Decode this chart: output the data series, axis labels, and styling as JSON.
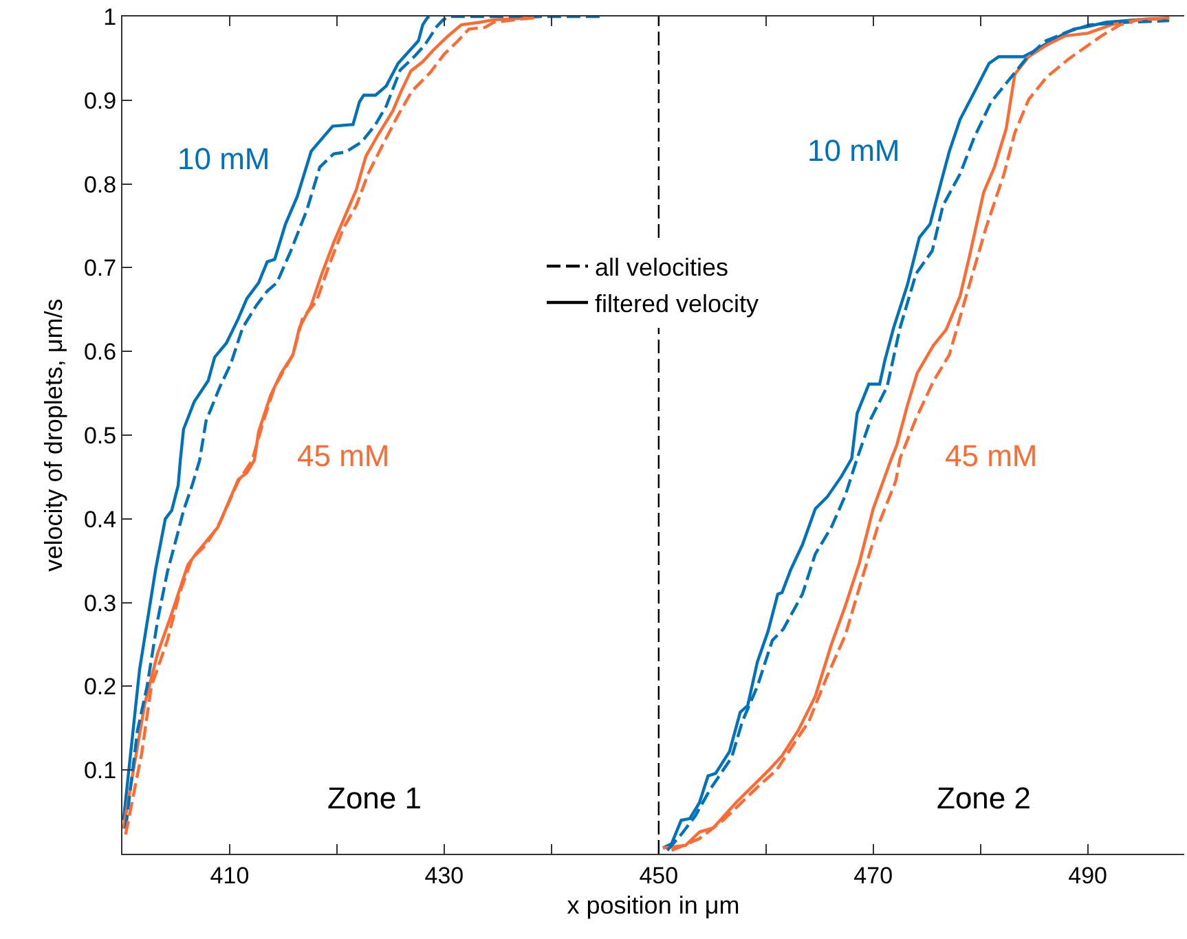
{
  "chart_data": {
    "type": "line",
    "xlabel": "x position in μm",
    "ylabel": "velocity of droplets, μm/s",
    "xlim": [
      400,
      499
    ],
    "xticks": [
      {
        "value": 400,
        "label": null
      },
      410,
      {
        "value": 420,
        "label": null
      },
      430,
      {
        "value": 440,
        "label": null
      },
      450,
      {
        "value": 460,
        "label": null
      },
      470,
      {
        "value": 480,
        "label": null
      },
      490
    ],
    "ylim": [
      0,
      1
    ],
    "yticks": [
      0.1,
      0.2,
      0.3,
      0.4,
      0.5,
      0.6,
      0.7,
      0.8,
      0.9,
      1
    ],
    "grid": false,
    "legend": "center",
    "marker": "none",
    "ref_lines": [
      {
        "axis": "x",
        "value": 450,
        "color": "#000000",
        "line_style": "dashed"
      }
    ],
    "annotations": [
      "10 mM",
      "45 mM",
      "10 mM",
      "45 mM",
      "Zone 1",
      "Zone 2"
    ],
    "series": [
      {
        "name": "all velocities",
        "color": "#000000",
        "line_style": "dashed",
        "values": [
          null
        ]
      },
      {
        "name": "filtered velocity",
        "color": "#000000",
        "line_style": "solid",
        "values": [
          null
        ]
      },
      {
        "color": "#0072bd",
        "line_style": "solid",
        "x": [
          400.1,
          401.6,
          403.1,
          404.0,
          404.6,
          405.2,
          405.4,
          405.7,
          406.7,
          408.0,
          408.6,
          409.7,
          410.8,
          411.6,
          412.7,
          413.5,
          414.2,
          415.2,
          416.3,
          417.6,
          419.6,
          421.5,
          422.1,
          422.5,
          423.6,
          424.6,
          425.7,
          427.6,
          428.0,
          428.4,
          428.6
        ],
        "values": [
          0.04,
          0.22,
          0.34,
          0.4,
          0.41,
          0.44,
          0.47,
          0.507,
          0.54,
          0.565,
          0.593,
          0.61,
          0.639,
          0.663,
          0.682,
          0.707,
          0.71,
          0.752,
          0.785,
          0.839,
          0.869,
          0.871,
          0.898,
          0.906,
          0.906,
          0.917,
          0.944,
          0.971,
          0.99,
          0.998,
          1
        ]
      },
      {
        "color": "#0072bd",
        "line_style": "dashed",
        "x": [
          400.3,
          401.4,
          402.3,
          403.3,
          404.2,
          405.1,
          405.7,
          406.5,
          407.2,
          407.8,
          409.1,
          410.1,
          411.2,
          412.5,
          413.5,
          414.4,
          415.7,
          417.2,
          418.4,
          419.7,
          420.8,
          422.3,
          423.6,
          424.6,
          425.9,
          427.2,
          428.2,
          429.3,
          429.9,
          430.5,
          444.6
        ],
        "values": [
          0.03,
          0.147,
          0.2,
          0.28,
          0.337,
          0.38,
          0.41,
          0.44,
          0.47,
          0.517,
          0.558,
          0.585,
          0.628,
          0.655,
          0.672,
          0.682,
          0.72,
          0.769,
          0.82,
          0.836,
          0.838,
          0.85,
          0.871,
          0.893,
          0.936,
          0.952,
          0.966,
          0.988,
          0.996,
          1,
          1
        ]
      },
      {
        "color": "#ff6a33",
        "line_style": "solid",
        "x": [
          400.1,
          400.8,
          402.1,
          403.3,
          404.6,
          406.1,
          406.9,
          408.9,
          410.8,
          411.6,
          412.3,
          412.7,
          413.8,
          414.8,
          415.9,
          416.5,
          417.6,
          418.6,
          419.7,
          420.8,
          421.8,
          422.7,
          423.9,
          425.2,
          426.0,
          426.9,
          428.0,
          429.0,
          430.3,
          431.6,
          433.3,
          434.6,
          437.2,
          438.9
        ],
        "values": [
          0.03,
          0.083,
          0.18,
          0.24,
          0.287,
          0.345,
          0.359,
          0.39,
          0.447,
          0.455,
          0.47,
          0.504,
          0.547,
          0.574,
          0.596,
          0.628,
          0.655,
          0.693,
          0.73,
          0.763,
          0.793,
          0.833,
          0.86,
          0.887,
          0.911,
          0.935,
          0.946,
          0.96,
          0.976,
          0.99,
          0.993,
          0.996,
          0.998,
          1
        ]
      },
      {
        "color": "#ff6a33",
        "line_style": "dashed",
        "x": [
          400.3,
          401.8,
          402.7,
          404.2,
          405.3,
          406.5,
          407.8,
          409.1,
          410.8,
          412.1,
          413.1,
          414.2,
          415.9,
          416.8,
          418.1,
          419.3,
          420.6,
          421.8,
          422.9,
          424.4,
          425.7,
          427.0,
          428.7,
          430.0,
          431.3,
          432.3,
          433.8,
          434.6,
          437.2,
          438.9
        ],
        "values": [
          0.023,
          0.12,
          0.2,
          0.255,
          0.31,
          0.353,
          0.369,
          0.396,
          0.445,
          0.47,
          0.515,
          0.558,
          0.596,
          0.64,
          0.66,
          0.704,
          0.747,
          0.774,
          0.812,
          0.85,
          0.882,
          0.911,
          0.933,
          0.955,
          0.971,
          0.985,
          0.987,
          0.993,
          0.997,
          0.999
        ]
      },
      {
        "color": "#0072bd",
        "line_style": "solid",
        "x": [
          450.4,
          451.2,
          452.1,
          452.9,
          453.8,
          454.6,
          455.3,
          456.6,
          457.6,
          458.3,
          459.2,
          460.2,
          461.1,
          461.5,
          462.3,
          463.4,
          464.6,
          465.7,
          467.0,
          468.0,
          468.5,
          469.6,
          470.6,
          471.1,
          471.9,
          473.2,
          474.3,
          475.3,
          476.2,
          477.1,
          478.1,
          479.4,
          480.8,
          481.7,
          484.0,
          484.9,
          487.0,
          488.7,
          490.0,
          491.7,
          495.5,
          497.6
        ],
        "values": [
          0.007,
          0.012,
          0.04,
          0.042,
          0.061,
          0.093,
          0.096,
          0.122,
          0.169,
          0.177,
          0.229,
          0.266,
          0.31,
          0.312,
          0.339,
          0.369,
          0.412,
          0.426,
          0.45,
          0.472,
          0.526,
          0.561,
          0.561,
          0.59,
          0.628,
          0.68,
          0.736,
          0.752,
          0.796,
          0.839,
          0.877,
          0.909,
          0.944,
          0.952,
          0.952,
          0.958,
          0.974,
          0.985,
          0.988,
          0.993,
          0.997,
          0.998
        ]
      },
      {
        "color": "#0072bd",
        "line_style": "dashed",
        "x": [
          450.8,
          452.1,
          453.4,
          454.8,
          456.8,
          457.8,
          459.2,
          460.6,
          461.6,
          463.4,
          464.6,
          466.1,
          467.4,
          468.5,
          469.8,
          471.3,
          472.5,
          474.0,
          475.5,
          476.5,
          478.1,
          479.4,
          481.0,
          482.7,
          484.4,
          486.1,
          488.2,
          490.2,
          493.4,
          497.6
        ],
        "values": [
          0.004,
          0.023,
          0.045,
          0.077,
          0.115,
          0.158,
          0.2,
          0.255,
          0.268,
          0.31,
          0.358,
          0.39,
          0.428,
          0.472,
          0.52,
          0.558,
          0.628,
          0.693,
          0.72,
          0.774,
          0.812,
          0.855,
          0.898,
          0.925,
          0.952,
          0.971,
          0.982,
          0.99,
          0.993,
          0.995
        ]
      },
      {
        "color": "#ff6a33",
        "line_style": "solid",
        "x": [
          450.4,
          452.5,
          453.8,
          455.1,
          457.2,
          460.2,
          461.5,
          463.0,
          464.6,
          466.1,
          467.4,
          468.7,
          470.0,
          471.7,
          472.2,
          473.2,
          474.1,
          475.6,
          476.8,
          478.1,
          479.0,
          480.3,
          481.3,
          482.4,
          483.2,
          484.5,
          486.2,
          487.9,
          490.0,
          492.2,
          494.7,
          497.6
        ],
        "values": [
          0.007,
          0.01,
          0.026,
          0.031,
          0.061,
          0.099,
          0.117,
          0.147,
          0.188,
          0.25,
          0.296,
          0.347,
          0.412,
          0.472,
          0.488,
          0.536,
          0.574,
          0.607,
          0.626,
          0.666,
          0.715,
          0.79,
          0.82,
          0.866,
          0.931,
          0.952,
          0.966,
          0.977,
          0.98,
          0.99,
          0.996,
          0.998
        ]
      },
      {
        "color": "#ff6a33",
        "line_style": "dashed",
        "x": [
          451.2,
          453.8,
          456.0,
          459.5,
          461.0,
          463.0,
          464.0,
          465.7,
          467.4,
          468.9,
          470.4,
          472.1,
          472.5,
          474.0,
          475.6,
          477.1,
          478.8,
          480.5,
          482.2,
          483.2,
          484.5,
          486.2,
          488.3,
          490.3,
          491.3,
          493.0,
          494.7,
          497.6
        ],
        "values": [
          0.004,
          0.018,
          0.04,
          0.083,
          0.1,
          0.139,
          0.158,
          0.212,
          0.261,
          0.326,
          0.39,
          0.445,
          0.472,
          0.52,
          0.564,
          0.596,
          0.672,
          0.747,
          0.812,
          0.861,
          0.901,
          0.928,
          0.95,
          0.968,
          0.977,
          0.99,
          0.996,
          0.998
        ]
      }
    ]
  }
}
